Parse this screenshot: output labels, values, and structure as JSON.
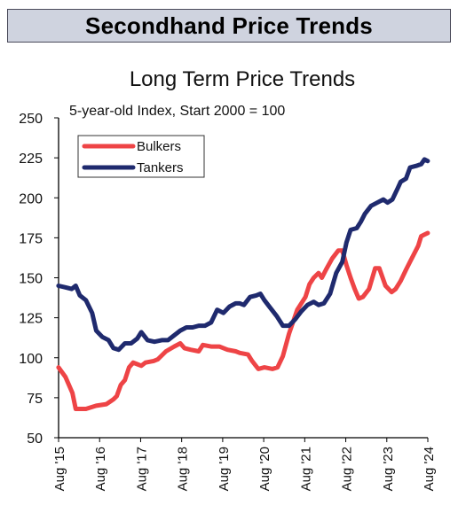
{
  "header": {
    "banner_title": "Secondhand Price Trends"
  },
  "chart_data": {
    "type": "line",
    "title": "Long Term Price Trends",
    "subtitle": "5-year-old Index, Start 2000 = 100",
    "xlabel": "",
    "ylabel": "",
    "ylim": [
      50,
      250
    ],
    "yticks": [
      50,
      75,
      100,
      125,
      150,
      175,
      200,
      225,
      250
    ],
    "xlim": [
      2015.583,
      2024.583
    ],
    "xtick_labels": [
      "Aug '15",
      "Aug '16",
      "Aug '17",
      "Aug '18",
      "Aug '19",
      "Aug '20",
      "Aug '21",
      "Aug '22",
      "Aug '23",
      "Aug '24"
    ],
    "grid": false,
    "legend": "top-left",
    "series": [
      {
        "name": "Bulkers",
        "color": "#ee4446",
        "points": [
          [
            2015.58,
            94
          ],
          [
            2015.75,
            88
          ],
          [
            2015.92,
            78
          ],
          [
            2016.0,
            68
          ],
          [
            2016.25,
            68
          ],
          [
            2016.5,
            70
          ],
          [
            2016.75,
            71
          ],
          [
            2016.92,
            74
          ],
          [
            2017.0,
            76
          ],
          [
            2017.1,
            83
          ],
          [
            2017.2,
            86
          ],
          [
            2017.3,
            94
          ],
          [
            2017.4,
            97
          ],
          [
            2017.5,
            96
          ],
          [
            2017.6,
            95
          ],
          [
            2017.7,
            97
          ],
          [
            2017.9,
            98
          ],
          [
            2018.0,
            99
          ],
          [
            2018.2,
            104
          ],
          [
            2018.4,
            107
          ],
          [
            2018.55,
            109
          ],
          [
            2018.65,
            106
          ],
          [
            2018.8,
            105
          ],
          [
            2019.0,
            104
          ],
          [
            2019.1,
            108
          ],
          [
            2019.3,
            107
          ],
          [
            2019.5,
            107
          ],
          [
            2019.7,
            105
          ],
          [
            2019.9,
            104
          ],
          [
            2020.0,
            103
          ],
          [
            2020.2,
            102
          ],
          [
            2020.3,
            98
          ],
          [
            2020.45,
            93
          ],
          [
            2020.6,
            94
          ],
          [
            2020.8,
            93
          ],
          [
            2020.92,
            94
          ],
          [
            2021.05,
            101
          ],
          [
            2021.2,
            115
          ],
          [
            2021.4,
            130
          ],
          [
            2021.6,
            138
          ],
          [
            2021.7,
            146
          ],
          [
            2021.8,
            150
          ],
          [
            2021.92,
            153
          ],
          [
            2022.0,
            150
          ],
          [
            2022.1,
            155
          ],
          [
            2022.25,
            162
          ],
          [
            2022.4,
            167
          ],
          [
            2022.5,
            167
          ],
          [
            2022.6,
            158
          ],
          [
            2022.7,
            150
          ],
          [
            2022.8,
            143
          ],
          [
            2022.9,
            137
          ],
          [
            2023.0,
            138
          ],
          [
            2023.15,
            143
          ],
          [
            2023.3,
            156
          ],
          [
            2023.4,
            156
          ],
          [
            2023.55,
            145
          ],
          [
            2023.7,
            141
          ],
          [
            2023.8,
            143
          ],
          [
            2023.92,
            148
          ],
          [
            2024.05,
            155
          ],
          [
            2024.15,
            160
          ],
          [
            2024.25,
            165
          ],
          [
            2024.35,
            170
          ],
          [
            2024.42,
            176
          ],
          [
            2024.5,
            177
          ],
          [
            2024.58,
            178
          ]
        ]
      },
      {
        "name": "Tankers",
        "color": "#1f2a6e",
        "points": [
          [
            2015.58,
            145
          ],
          [
            2015.75,
            144
          ],
          [
            2015.9,
            143
          ],
          [
            2016.0,
            145
          ],
          [
            2016.1,
            139
          ],
          [
            2016.25,
            136
          ],
          [
            2016.4,
            128
          ],
          [
            2016.5,
            117
          ],
          [
            2016.65,
            113
          ],
          [
            2016.8,
            111
          ],
          [
            2016.92,
            106
          ],
          [
            2017.05,
            105
          ],
          [
            2017.2,
            109
          ],
          [
            2017.35,
            109
          ],
          [
            2017.5,
            112
          ],
          [
            2017.6,
            116
          ],
          [
            2017.75,
            111
          ],
          [
            2017.92,
            110
          ],
          [
            2018.1,
            111
          ],
          [
            2018.25,
            111
          ],
          [
            2018.4,
            114
          ],
          [
            2018.55,
            117
          ],
          [
            2018.7,
            119
          ],
          [
            2018.85,
            119
          ],
          [
            2019.0,
            120
          ],
          [
            2019.15,
            120
          ],
          [
            2019.3,
            122
          ],
          [
            2019.45,
            130
          ],
          [
            2019.6,
            128
          ],
          [
            2019.75,
            132
          ],
          [
            2019.9,
            134
          ],
          [
            2020.0,
            134
          ],
          [
            2020.1,
            133
          ],
          [
            2020.25,
            138
          ],
          [
            2020.4,
            139
          ],
          [
            2020.5,
            140
          ],
          [
            2020.6,
            136
          ],
          [
            2020.75,
            131
          ],
          [
            2020.9,
            126
          ],
          [
            2021.05,
            120
          ],
          [
            2021.2,
            120
          ],
          [
            2021.35,
            124
          ],
          [
            2021.5,
            129
          ],
          [
            2021.65,
            133
          ],
          [
            2021.8,
            135
          ],
          [
            2021.92,
            133
          ],
          [
            2022.05,
            134
          ],
          [
            2022.2,
            140
          ],
          [
            2022.35,
            153
          ],
          [
            2022.5,
            160
          ],
          [
            2022.6,
            172
          ],
          [
            2022.7,
            180
          ],
          [
            2022.85,
            181
          ],
          [
            2022.95,
            185
          ],
          [
            2023.05,
            190
          ],
          [
            2023.2,
            195
          ],
          [
            2023.35,
            197
          ],
          [
            2023.5,
            199
          ],
          [
            2023.6,
            197
          ],
          [
            2023.72,
            199
          ],
          [
            2023.85,
            206
          ],
          [
            2023.92,
            210
          ],
          [
            2024.05,
            212
          ],
          [
            2024.15,
            219
          ],
          [
            2024.3,
            220
          ],
          [
            2024.42,
            221
          ],
          [
            2024.5,
            224
          ],
          [
            2024.58,
            223
          ]
        ]
      }
    ]
  }
}
